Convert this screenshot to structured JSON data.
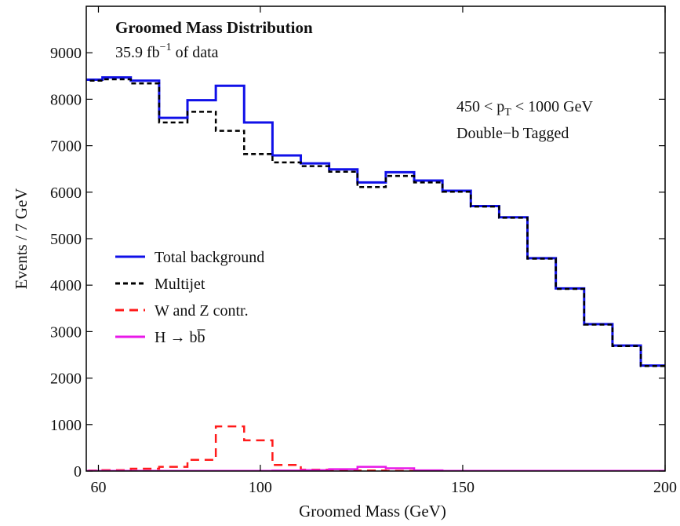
{
  "chart_data": {
    "type": "line",
    "title": "Groomed Mass Distribution",
    "subtitle_prefix": "35.9 fb",
    "subtitle_sup": "−1",
    "subtitle_suffix": " of data",
    "annotation_line1_prefix": "450 < p",
    "annotation_line1_sub": "T",
    "annotation_line1_suffix": " < 1000 GeV",
    "annotation_line2": "Double−b Tagged",
    "xlabel": "Groomed Mass (GeV)",
    "ylabel": "Events / 7 GeV",
    "xlim": [
      57,
      200
    ],
    "ylim": [
      0,
      10000
    ],
    "xticks": [
      60,
      100,
      150,
      200
    ],
    "yticks": [
      0,
      1000,
      2000,
      3000,
      4000,
      5000,
      6000,
      7000,
      8000,
      9000
    ],
    "legend_position": "center-left",
    "bin_edges": [
      54,
      61,
      68,
      75,
      82,
      89,
      96,
      103,
      110,
      117,
      124,
      131,
      138,
      145,
      152,
      159,
      166,
      173,
      180,
      187,
      194,
      201
    ],
    "series": [
      {
        "name": "Total background",
        "color": "#1010e8",
        "dash": "solid",
        "values": [
          8420,
          8470,
          8400,
          7600,
          7980,
          8290,
          7500,
          6790,
          6620,
          6490,
          6210,
          6430,
          6250,
          6030,
          5700,
          5460,
          4580,
          3930,
          3160,
          2700,
          2270
        ]
      },
      {
        "name": "Multijet",
        "color": "#000000",
        "dash": "dotted",
        "values": [
          8400,
          8430,
          8340,
          7500,
          7730,
          7320,
          6820,
          6640,
          6560,
          6440,
          6110,
          6350,
          6210,
          6010,
          5690,
          5450,
          4570,
          3920,
          3150,
          2690,
          2260
        ]
      },
      {
        "name": " W and Z contr.",
        "color": "#ff1a1a",
        "dash": "dashed",
        "values": [
          10,
          20,
          50,
          90,
          240,
          960,
          660,
          130,
          30,
          20,
          10,
          5,
          5,
          5,
          5,
          5,
          5,
          5,
          5,
          5,
          5
        ]
      },
      {
        "name": "H → bb",
        "color": "#e818e8",
        "dash": "solid",
        "values": [
          5,
          5,
          5,
          5,
          5,
          5,
          5,
          10,
          20,
          40,
          90,
          60,
          15,
          5,
          5,
          5,
          5,
          5,
          5,
          5,
          5
        ]
      }
    ]
  }
}
